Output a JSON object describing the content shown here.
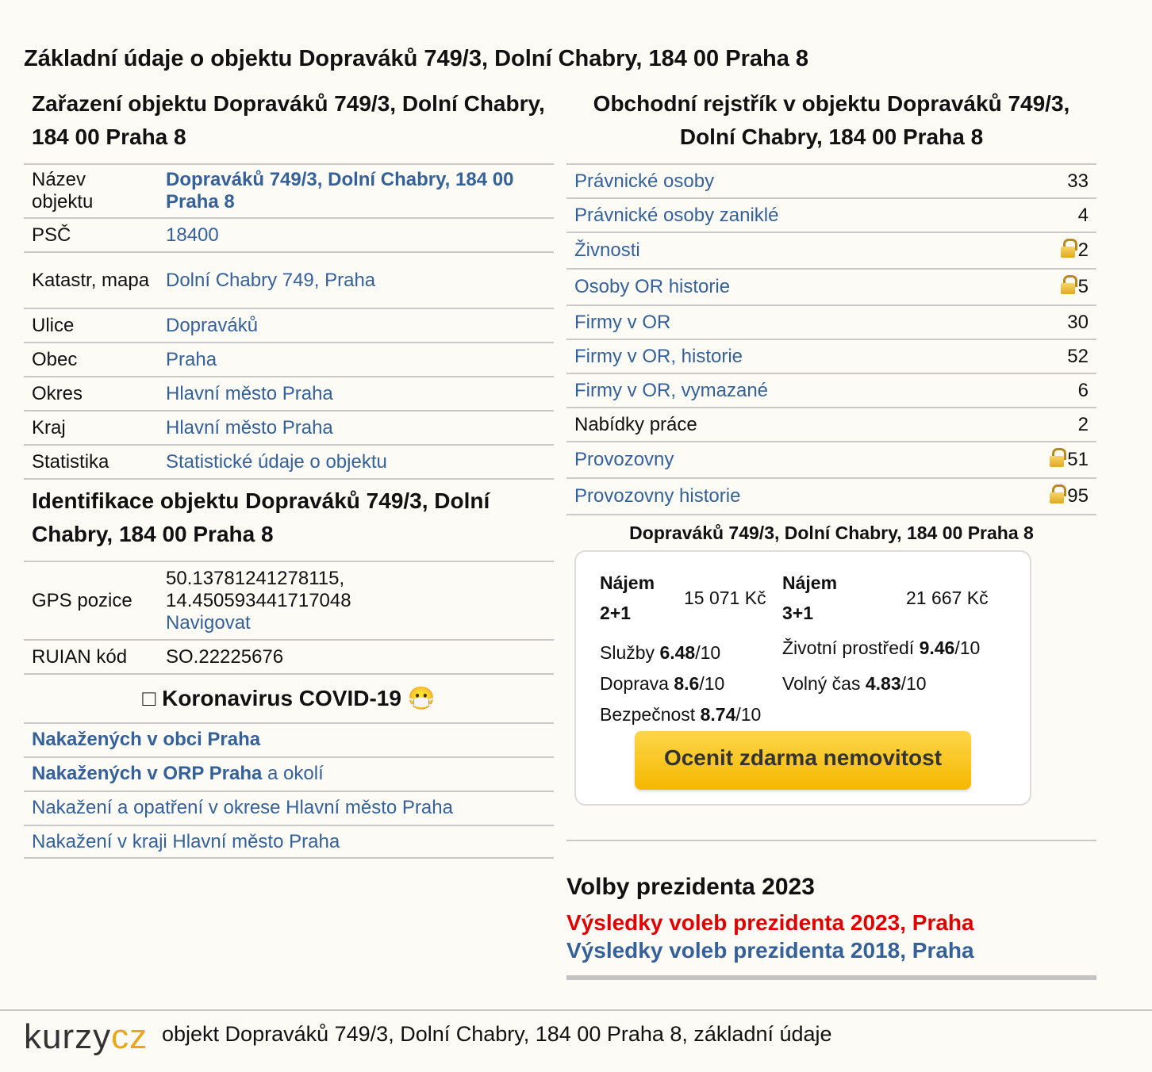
{
  "main_title": "Základní údaje o objektu Dopraváků 749/3, Dolní Chabry, 184 00 Praha 8",
  "zarazeni": {
    "title": "Zařazení objektu Dopraváků 749/3, Dolní Chabry, 184 00 Praha 8",
    "rows": [
      {
        "label": "Název objektu",
        "value": "Dopraváků 749/3, Dolní Chabry, 184 00 Praha 8"
      },
      {
        "label": "PSČ",
        "value": "18400"
      },
      {
        "label": "Katastr, mapa",
        "value": "Dolní Chabry 749, Praha"
      },
      {
        "label": "Ulice",
        "value": "Dopraváků"
      },
      {
        "label": "Obec",
        "value": "Praha"
      },
      {
        "label": "Okres",
        "value": "Hlavní město Praha"
      },
      {
        "label": "Kraj",
        "value": "Hlavní město Praha"
      },
      {
        "label": "Statistika",
        "value": "Statistické údaje o objektu"
      }
    ]
  },
  "identifikace": {
    "title": "Identifikace objektu Dopraváků 749/3, Dolní Chabry, 184 00 Praha 8",
    "gps_label": "GPS pozice",
    "gps_lat": "50.13781241278115,",
    "gps_lon": "14.450593441717048",
    "gps_link": "Navigovat",
    "ruian_label": "RUIAN kód",
    "ruian_value": "SO.22225676"
  },
  "covid": {
    "title_prefix": "□",
    "title": "Koronavirus COVID-19",
    "title_emoji": "😷",
    "row1_strong": "Nakažených v obci Praha",
    "row2_strong": "Nakažených v ORP Praha",
    "row2_rest": " a okolí",
    "row3": "Nakažení a opatření v okrese Hlavní město Praha",
    "row4": "Nakažení v kraji Hlavní město Praha"
  },
  "rejstrik": {
    "title": "Obchodní rejstřík v objektu Dopraváků 749/3, Dolní Chabry, 184 00 Praha 8",
    "rows": [
      {
        "label": "Právnické osoby",
        "value": "33",
        "link": true,
        "locked": false
      },
      {
        "label": "Právnické osoby zaniklé",
        "value": "4",
        "link": true,
        "locked": false
      },
      {
        "label": "Živnosti",
        "value": "2",
        "link": true,
        "locked": true
      },
      {
        "label": "Osoby OR historie",
        "value": "5",
        "link": true,
        "locked": true
      },
      {
        "label": "Firmy v OR",
        "value": "30",
        "link": true,
        "locked": false
      },
      {
        "label": "Firmy v OR, historie",
        "value": "52",
        "link": true,
        "locked": false
      },
      {
        "label": "Firmy v OR, vymazané",
        "value": "6",
        "link": true,
        "locked": false
      },
      {
        "label": "Nabídky práce",
        "value": "2",
        "link": false,
        "locked": false
      },
      {
        "label": "Provozovny",
        "value": "51",
        "link": true,
        "locked": true
      },
      {
        "label": "Provozovny historie",
        "value": "95",
        "link": true,
        "locked": true
      }
    ]
  },
  "card": {
    "address": "Dopraváků 749/3, Dolní Chabry, 184 00 Praha 8",
    "najem1_label_a": "Nájem",
    "najem1_label_b": "2+1",
    "najem1_value": "15 071 Kč",
    "najem2_label_a": "Nájem",
    "najem2_label_b": "3+1",
    "najem2_value": "21 667 Kč",
    "sluzby_label": "Služby ",
    "sluzby_value": "6.48",
    "zivotni_label": "Životní prostředí ",
    "zivotni_value": "9.46",
    "doprava_label": "Doprava ",
    "doprava_value": "8.6",
    "volny_label": "Volný čas ",
    "volny_value": "4.83",
    "bezpecnost_label": "Bezpečnost ",
    "bezpecnost_value": "8.74",
    "out_of": "/10",
    "button": "Ocenit zdarma nemovitost"
  },
  "volby": {
    "title": "Volby prezidenta 2023",
    "link_2023": "Výsledky voleb prezidenta 2023, Praha",
    "link_2018": "Výsledky voleb prezidenta 2018, Praha"
  },
  "footer": {
    "logo_a": "kurzy",
    "logo_b": "cz",
    "text": "objekt Dopraváků 749/3, Dolní Chabry, 184 00 Praha 8, základní údaje"
  },
  "colors": {
    "link": "#35619a",
    "red_link": "#e00000",
    "button": "#fdd64a",
    "background": "#fcfbf6"
  }
}
